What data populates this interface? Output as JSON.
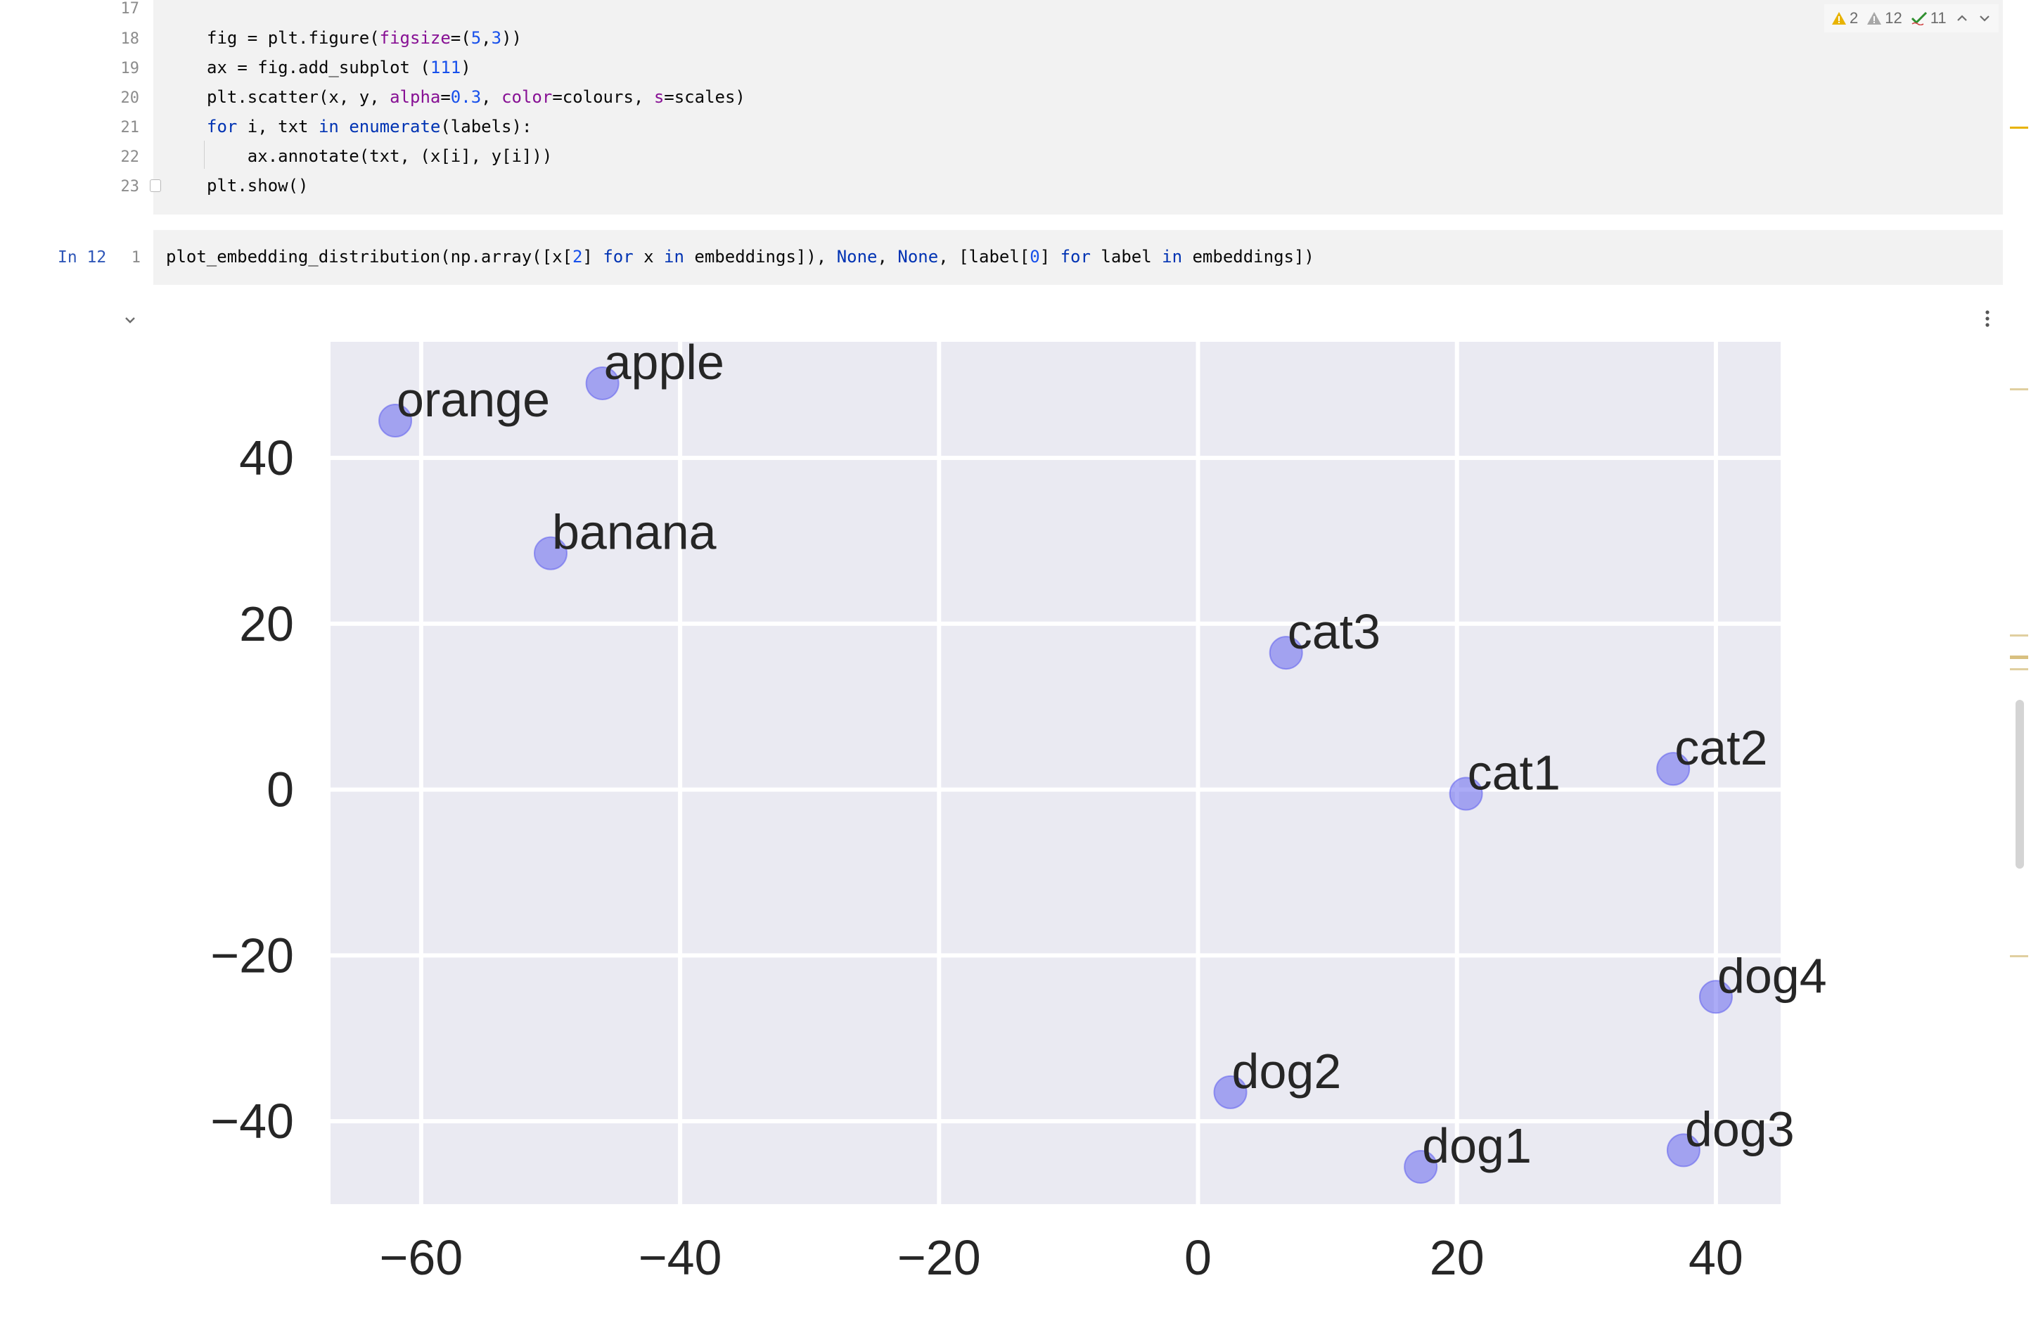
{
  "editor": {
    "cell1": {
      "line_numbers": [
        "17",
        "18",
        "19",
        "20",
        "21",
        "22",
        "23"
      ],
      "lines": [
        "",
        "fig = plt.figure(figsize=(5,3))",
        "ax = fig.add_subplot (111)",
        "plt.scatter(x, y, alpha=0.3, color=colours, s=scales)",
        "for i, txt in enumerate(labels):",
        "    ax.annotate(txt, (x[i], y[i]))",
        "plt.show()"
      ]
    },
    "cell2": {
      "prompt": "In 12",
      "line_number": "1",
      "code": "plot_embedding_distribution(np.array([x[2] for x in embeddings]), None, None, [label[0] for label in embeddings])"
    }
  },
  "inspections": {
    "errors": "2",
    "warnings": "12",
    "typos": "11"
  },
  "colors": {
    "plot_bg": "#eaeaf2",
    "point": "#6666ee",
    "grid": "#ffffff",
    "error": "#e8b300",
    "warning": "#b0b0b0",
    "typo": "#2f8f2f"
  },
  "chart_data": {
    "type": "scatter",
    "grid": true,
    "xlim": [
      -67,
      45
    ],
    "ylim": [
      -50,
      54
    ],
    "xticks": [
      -60,
      -40,
      -20,
      0,
      20,
      40
    ],
    "yticks": [
      -40,
      -20,
      0,
      20,
      40
    ],
    "xtick_labels": [
      "−60",
      "−40",
      "−20",
      "0",
      "20",
      "40"
    ],
    "ytick_labels": [
      "−40",
      "−20",
      "0",
      "20",
      "40"
    ],
    "points": [
      {
        "label": "orange",
        "x": -62,
        "y": 44.5
      },
      {
        "label": "apple",
        "x": -46,
        "y": 49
      },
      {
        "label": "banana",
        "x": -50,
        "y": 28.5
      },
      {
        "label": "cat3",
        "x": 6.8,
        "y": 16.5
      },
      {
        "label": "cat1",
        "x": 20.7,
        "y": -0.5
      },
      {
        "label": "cat2",
        "x": 36.7,
        "y": 2.5
      },
      {
        "label": "dog4",
        "x": 40,
        "y": -25
      },
      {
        "label": "dog2",
        "x": 2.5,
        "y": -36.5
      },
      {
        "label": "dog1",
        "x": 17.2,
        "y": -45.5
      },
      {
        "label": "dog3",
        "x": 37.5,
        "y": -43.5
      }
    ]
  }
}
